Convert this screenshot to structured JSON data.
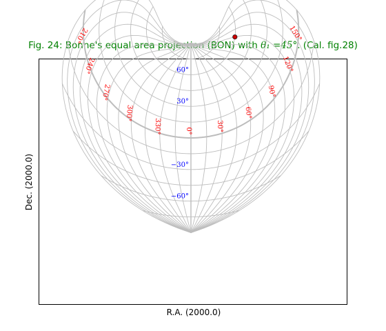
{
  "title": {
    "prefix": "Fig. 24: Bonne's equal area projection (BON) with ",
    "math": "θ₁ =45°",
    "suffix": ". (Cal. fig.28)"
  },
  "chart_data": {
    "type": "map-projection",
    "projection": "Bonne's equal area (BON)",
    "theta1_deg": 45,
    "xlabel": "R.A. (2000.0)",
    "ylabel": "Dec. (2000.0)",
    "graticule": {
      "longitudes_deg": [
        0,
        15,
        30,
        45,
        60,
        75,
        90,
        105,
        120,
        135,
        150,
        165,
        180,
        195,
        210,
        225,
        240,
        255,
        270,
        285,
        300,
        315,
        330,
        345,
        360
      ],
      "latitudes_deg": [
        -75,
        -60,
        -45,
        -30,
        -15,
        0,
        15,
        30,
        45,
        60,
        75,
        90
      ],
      "color": "#bdbdbd",
      "highlight_parallel_deg": 0,
      "highlight_meridian_deg": 0
    },
    "lon_labels": [
      {
        "text": "0°",
        "lon": 0
      },
      {
        "text": "30°",
        "lon": 30
      },
      {
        "text": "60°",
        "lon": 60
      },
      {
        "text": "90°",
        "lon": 90
      },
      {
        "text": "120°",
        "lon": 120
      },
      {
        "text": "150°",
        "lon": 150
      },
      {
        "text": "210°",
        "lon": 210
      },
      {
        "text": "240°",
        "lon": 240
      },
      {
        "text": "270°",
        "lon": 270
      },
      {
        "text": "300°",
        "lon": 300
      },
      {
        "text": "330°",
        "lon": 330
      }
    ],
    "lat_labels": [
      {
        "text": "60°",
        "lat": 60
      },
      {
        "text": "30°",
        "lat": 30
      },
      {
        "text": "−30°",
        "lat": -30
      },
      {
        "text": "−60°",
        "lat": -60
      }
    ],
    "lon_label_color": "#ff0000",
    "lat_label_color": "#0000ff",
    "marker": {
      "lon": 120,
      "lat": 60,
      "color": "#cc0000"
    }
  }
}
